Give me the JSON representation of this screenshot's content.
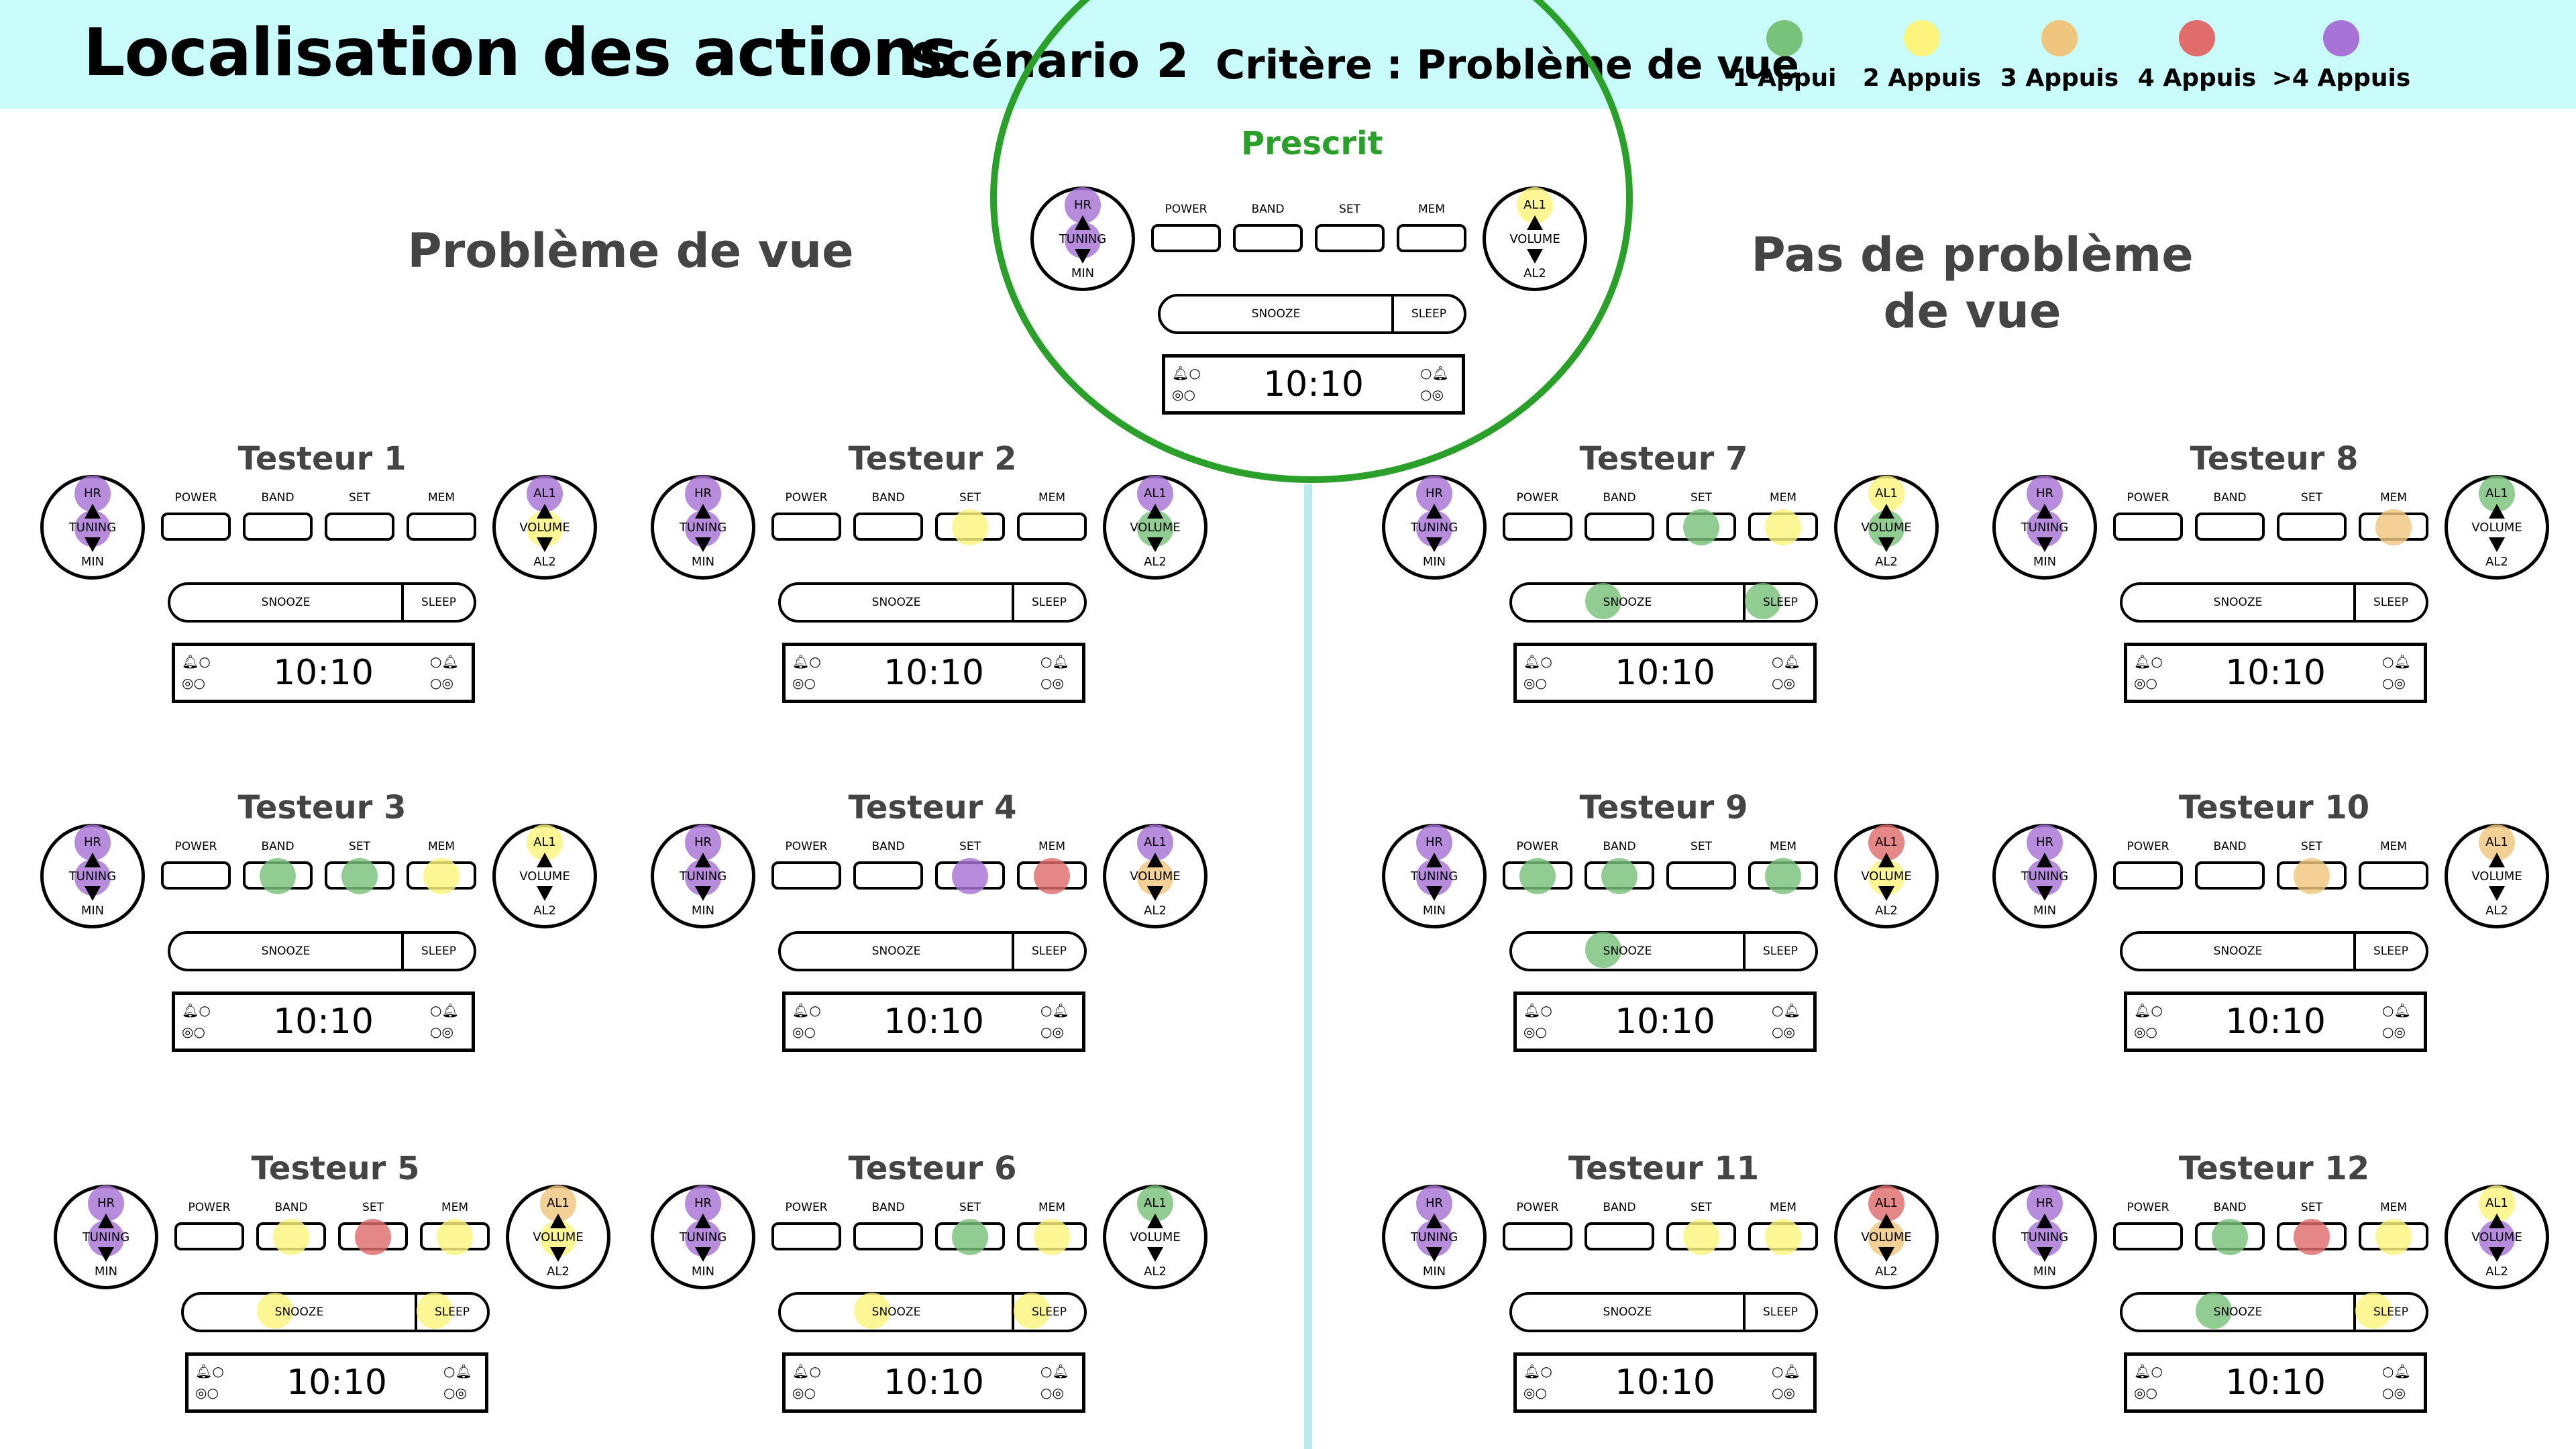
{
  "header": {
    "title": "Localisation des actions",
    "scenario": "Scénario 2",
    "critere": "Critère : Problème de vue"
  },
  "legend": [
    {
      "label": "1 Appui",
      "color": "#79c27b"
    },
    {
      "label": "2 Appuis",
      "color": "#fdf47e"
    },
    {
      "label": "3 Appuis",
      "color": "#f0c67f"
    },
    {
      "label": "4 Appuis",
      "color": "#e06c6c"
    },
    {
      "label": ">4 Appuis",
      "color": "#a773d6"
    }
  ],
  "groups": {
    "left": "Problème de vue",
    "right_line1": "Pas de problème",
    "right_line2": "de vue"
  },
  "prescrit": {
    "title": "Prescrit",
    "dots": {
      "HR": 5,
      "MIN": 5,
      "AL1": 2
    }
  },
  "device_labels": {
    "hr": "HR",
    "tuning": "TUNING",
    "min": "MIN",
    "al1": "AL1",
    "volume": "VOLUME",
    "al2": "AL2",
    "power": "POWER",
    "band": "BAND",
    "set": "SET",
    "mem": "MEM",
    "snooze": "SNOOZE",
    "sleep": "SLEEP",
    "time": "10:10"
  },
  "testers": [
    {
      "name": "Testeur 1",
      "dots": {
        "HR": 5,
        "MIN": 5,
        "AL1": 5,
        "AL2": 2
      }
    },
    {
      "name": "Testeur 2",
      "dots": {
        "HR": 5,
        "MIN": 5,
        "SET": 2,
        "AL1": 5,
        "AL2": 1
      }
    },
    {
      "name": "Testeur 3",
      "dots": {
        "HR": 5,
        "MIN": 5,
        "BAND": 1,
        "SET": 1,
        "MEM": 2,
        "AL1": 2
      }
    },
    {
      "name": "Testeur 4",
      "dots": {
        "HR": 5,
        "MIN": 5,
        "SET": 5,
        "MEM": 4,
        "AL1": 5,
        "AL2": 3
      }
    },
    {
      "name": "Testeur 5",
      "dots": {
        "HR": 5,
        "MIN": 5,
        "BAND": 2,
        "SET": 4,
        "MEM": 2,
        "AL1": 3,
        "AL2": 2,
        "SNOOZE": 2,
        "SLEEP": 2
      }
    },
    {
      "name": "Testeur 6",
      "dots": {
        "HR": 5,
        "MIN": 5,
        "SET": 1,
        "MEM": 2,
        "AL1": 1,
        "SNOOZE": 2,
        "SLEEP": 2
      }
    },
    {
      "name": "Testeur 7",
      "dots": {
        "HR": 5,
        "MIN": 5,
        "SET": 1,
        "MEM": 2,
        "AL1": 2,
        "AL2": 1,
        "SNOOZE": 1,
        "SLEEP": 1
      }
    },
    {
      "name": "Testeur 8",
      "dots": {
        "HR": 5,
        "MIN": 5,
        "MEM": 3,
        "AL1": 1
      }
    },
    {
      "name": "Testeur 9",
      "dots": {
        "HR": 5,
        "MIN": 5,
        "POWER": 1,
        "BAND": 1,
        "MEM": 1,
        "AL1": 4,
        "AL2": 2,
        "SNOOZE": 1
      }
    },
    {
      "name": "Testeur 10",
      "dots": {
        "HR": 5,
        "MIN": 5,
        "SET": 3,
        "AL1": 3
      }
    },
    {
      "name": "Testeur 11",
      "dots": {
        "HR": 5,
        "MIN": 5,
        "SET": 2,
        "MEM": 2,
        "AL1": 4,
        "AL2": 3
      }
    },
    {
      "name": "Testeur 12",
      "dots": {
        "HR": 5,
        "MIN": 5,
        "BAND": 1,
        "SET": 4,
        "MEM": 2,
        "AL1": 2,
        "AL2": 5,
        "SNOOZE": 1,
        "SLEEP": 2
      }
    }
  ]
}
